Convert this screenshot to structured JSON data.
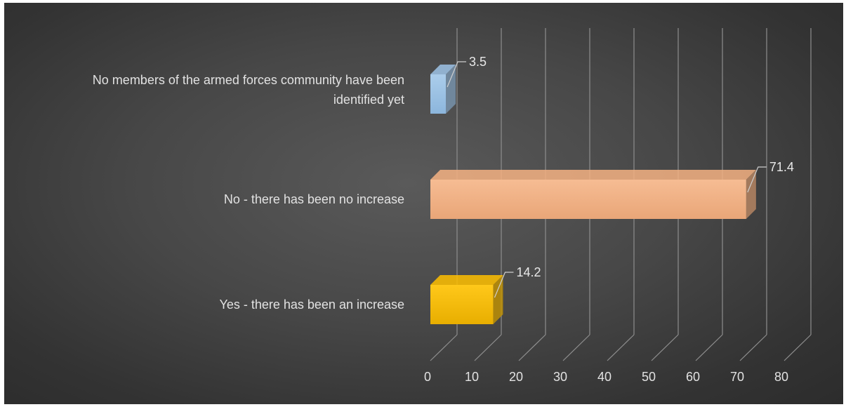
{
  "chart_data": {
    "type": "bar",
    "orientation": "horizontal",
    "three_d": true,
    "title": "",
    "xlabel": "",
    "ylabel": "",
    "categories": [
      "Yes - there has been an increase",
      "No - there has been no increase",
      "No members of the armed forces community have been identified yet"
    ],
    "category_label_lines": [
      [
        "Yes - there has been an increase"
      ],
      [
        "No - there has been no increase"
      ],
      [
        "No members of the armed forces community have been",
        "identified yet"
      ]
    ],
    "values": [
      14.2,
      71.4,
      3.5
    ],
    "data_labels": [
      "14.2",
      "71.4",
      "3.5"
    ],
    "colors": [
      "#FFC000",
      "#F4B183",
      "#9DC3E6"
    ],
    "xlim": [
      0,
      80
    ],
    "x_ticks": [
      "0",
      "10",
      "20",
      "30",
      "40",
      "50",
      "60",
      "70",
      "80"
    ],
    "grid": true,
    "legend": "none",
    "background": "#3f3f3f"
  }
}
